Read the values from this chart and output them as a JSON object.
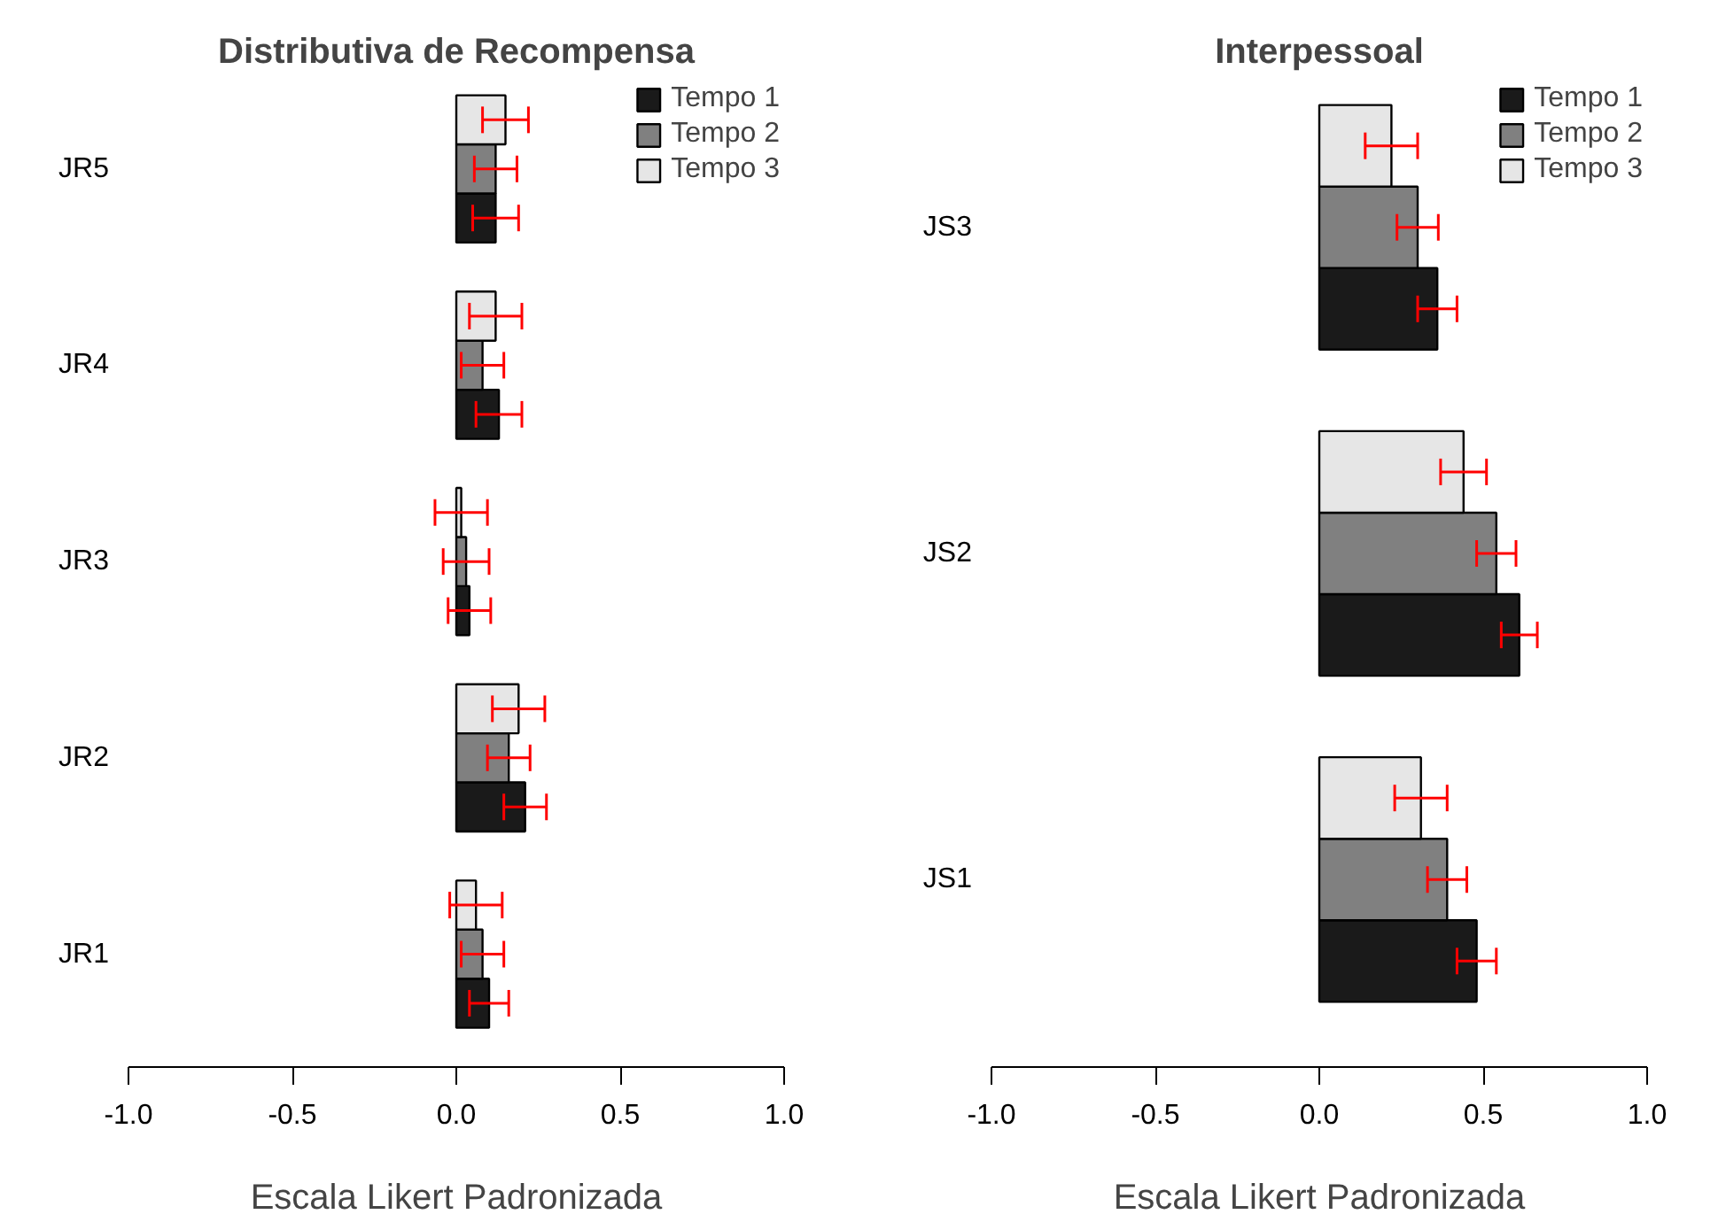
{
  "chart_data": [
    {
      "type": "bar",
      "orientation": "horizontal",
      "title": "Distributiva de Recompensa",
      "xlabel": "Escala Likert Padronizada",
      "categories": [
        "JR5",
        "JR4",
        "JR3",
        "JR2",
        "JR1"
      ],
      "series": [
        {
          "name": "Tempo 1",
          "color": "#1a1a1a",
          "values": [
            0.12,
            0.13,
            0.04,
            0.21,
            0.1
          ],
          "errors": [
            0.07,
            0.07,
            0.065,
            0.065,
            0.06
          ]
        },
        {
          "name": "Tempo 2",
          "color": "#808080",
          "values": [
            0.12,
            0.08,
            0.03,
            0.16,
            0.08
          ],
          "errors": [
            0.065,
            0.065,
            0.07,
            0.065,
            0.065
          ]
        },
        {
          "name": "Tempo 3",
          "color": "#e6e6e6",
          "values": [
            0.15,
            0.12,
            0.015,
            0.19,
            0.06
          ],
          "errors": [
            0.07,
            0.08,
            0.08,
            0.08,
            0.08
          ]
        }
      ],
      "xlim": [
        -1,
        1
      ],
      "xticks": [
        {
          "value": -1,
          "label": "-1.0"
        },
        {
          "value": -0.5,
          "label": "-0.5"
        },
        {
          "value": 0,
          "label": "0.0"
        },
        {
          "value": 0.5,
          "label": "0.5"
        },
        {
          "value": 1,
          "label": "1.0"
        }
      ],
      "legend": "top right"
    },
    {
      "type": "bar",
      "orientation": "horizontal",
      "title": "Interpessoal",
      "xlabel": "Escala Likert Padronizada",
      "categories": [
        "JS3",
        "JS2",
        "JS1"
      ],
      "series": [
        {
          "name": "Tempo 1",
          "color": "#1a1a1a",
          "values": [
            0.36,
            0.61,
            0.48
          ],
          "errors": [
            0.06,
            0.055,
            0.06
          ]
        },
        {
          "name": "Tempo 2",
          "color": "#808080",
          "values": [
            0.3,
            0.54,
            0.39
          ],
          "errors": [
            0.063,
            0.06,
            0.06
          ]
        },
        {
          "name": "Tempo 3",
          "color": "#e6e6e6",
          "values": [
            0.22,
            0.44,
            0.31
          ],
          "errors": [
            0.08,
            0.07,
            0.08
          ]
        }
      ],
      "xlim": [
        -1,
        1
      ],
      "xticks": [
        {
          "value": -1,
          "label": "-1.0"
        },
        {
          "value": -0.5,
          "label": "-0.5"
        },
        {
          "value": 0,
          "label": "0.0"
        },
        {
          "value": 0.5,
          "label": "0.5"
        },
        {
          "value": 1,
          "label": "1.0"
        }
      ],
      "legend": "top right"
    }
  ]
}
